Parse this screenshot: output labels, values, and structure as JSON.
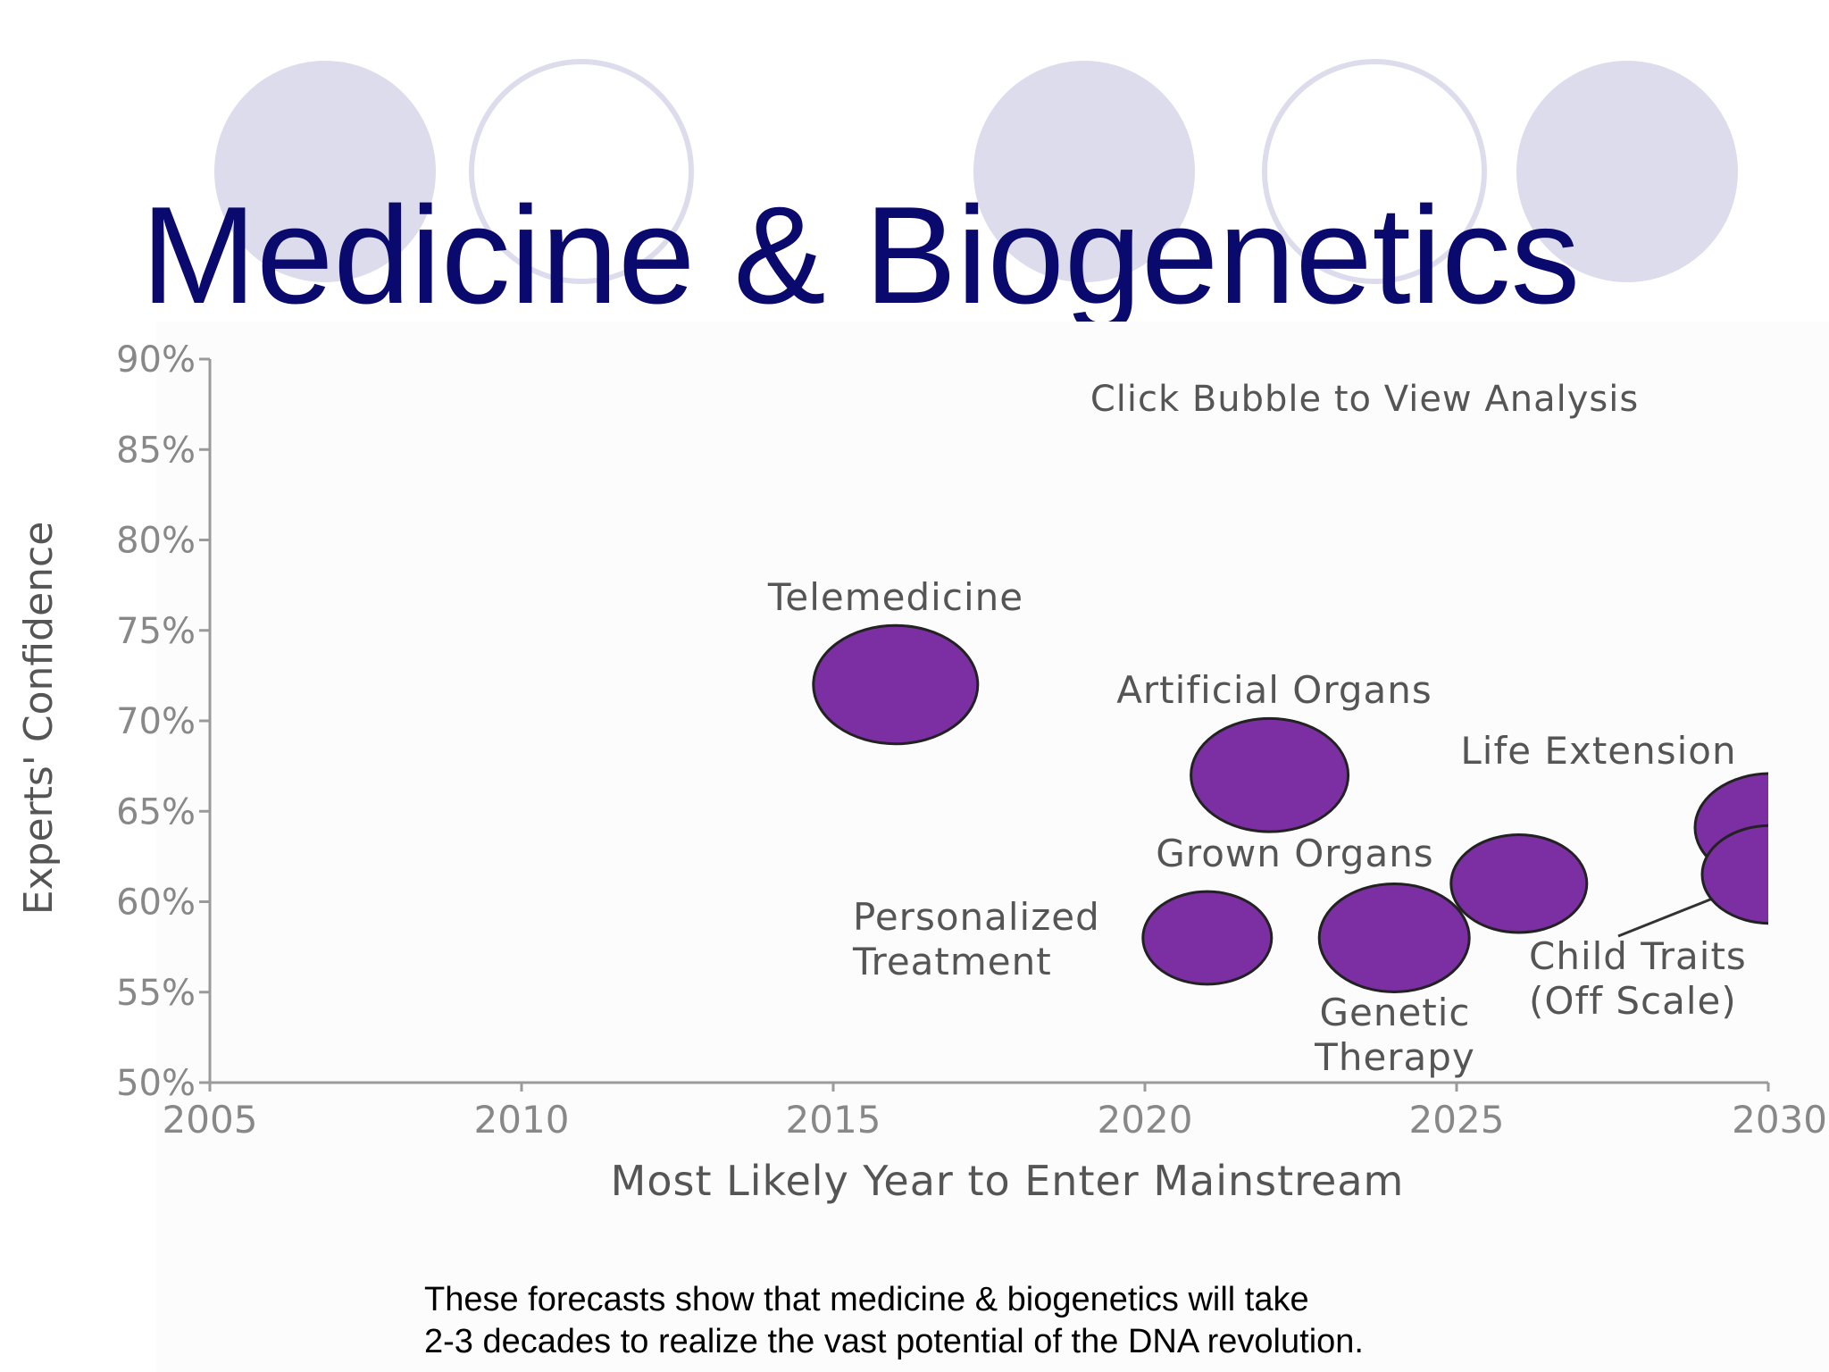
{
  "slide": {
    "title": "Medicine & Biogenetics",
    "footer_lines": [
      "These forecasts show that medicine & biogenetics will take",
      "2-3 decades to realize the vast potential of the DNA revolution."
    ]
  },
  "colors": {
    "title": "#0a0a6e",
    "bubble_fill": "#7b2fa3",
    "decor_circle": "#dcdcec",
    "axis": "#9a9a9a",
    "label_text": "#555555"
  },
  "chart_data": {
    "type": "scatter",
    "title": "",
    "xlabel": "Most Likely Year to Enter Mainstream",
    "ylabel": "Experts' Confidence",
    "annotation": "Click Bubble to View Analysis",
    "xlim": [
      2005,
      2030
    ],
    "ylim": [
      50,
      90
    ],
    "x_ticks": [
      "2005",
      "2010",
      "2015",
      "2020",
      "2025",
      "2030"
    ],
    "y_ticks": [
      "50%",
      "55%",
      "60%",
      "65%",
      "70%",
      "75%",
      "80%",
      "85%",
      "90%"
    ],
    "grid": false,
    "legend": "none",
    "points": [
      {
        "label": "Telemedicine",
        "label_lines": [
          "Telemedicine"
        ],
        "x": 2016,
        "y": 72,
        "r": 0.23
      },
      {
        "label": "Artificial Organs",
        "label_lines": [
          "Artificial Organs"
        ],
        "x": 2022,
        "y": 67,
        "r": 0.22
      },
      {
        "label": "Personalized Treatment",
        "label_lines": [
          "Personalized",
          "Treatment"
        ],
        "x": 2021,
        "y": 58,
        "r": 0.18
      },
      {
        "label": "Grown Organs",
        "label_lines": [
          "Grown Organs"
        ],
        "x": 2026,
        "y": 61,
        "r": 0.19
      },
      {
        "label": "Genetic Therapy",
        "label_lines": [
          "Genetic",
          "Therapy"
        ],
        "x": 2024,
        "y": 58,
        "r": 0.21
      },
      {
        "label": "Life Extension",
        "label_lines": [
          "Life Extension"
        ],
        "x": 2030,
        "y": 64,
        "r": 0.21
      },
      {
        "label": "Child Traits (Off Scale)",
        "label_lines": [
          "Child Traits",
          "(Off Scale)"
        ],
        "x": 2030,
        "y": 62,
        "r": 0.19
      }
    ]
  }
}
